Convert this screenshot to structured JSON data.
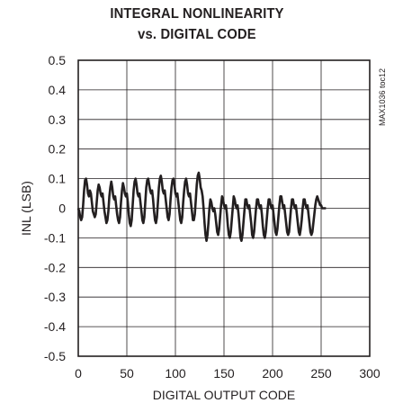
{
  "chart_data": {
    "type": "line",
    "title_line1": "INTEGRAL NONLINEARITY",
    "title_line2": "vs. DIGITAL CODE",
    "xlabel": "DIGITAL OUTPUT CODE",
    "ylabel": "INL (LSB)",
    "xlim": [
      0,
      300
    ],
    "ylim": [
      -0.5,
      0.5
    ],
    "xticks": [
      0,
      50,
      100,
      150,
      200,
      250,
      300
    ],
    "yticks": [
      0.5,
      0.4,
      0.3,
      0.2,
      0.1,
      0,
      -0.1,
      -0.2,
      -0.3,
      -0.4,
      -0.5
    ],
    "ytick_labels": [
      "0.5",
      "0.4",
      "0.3",
      "0.2",
      "0.1",
      "0",
      "-0.1",
      "-0.2",
      "-0.3",
      "-0.4",
      "-0.5"
    ],
    "grid": true,
    "side_note": "MAX1036 toc12",
    "series": [
      {
        "color": "#231f20",
        "x": [
          0,
          1,
          2,
          3,
          4,
          5,
          6,
          7,
          8,
          9,
          10,
          11,
          12,
          13,
          14,
          15,
          16,
          17,
          18,
          19,
          20,
          21,
          22,
          23,
          24,
          25,
          26,
          27,
          28,
          29,
          30,
          31,
          32,
          33,
          34,
          35,
          36,
          37,
          38,
          39,
          40,
          41,
          42,
          43,
          44,
          45,
          46,
          47,
          48,
          49,
          50,
          51,
          52,
          53,
          54,
          55,
          56,
          57,
          58,
          59,
          60,
          61,
          62,
          63,
          64,
          65,
          66,
          67,
          68,
          69,
          70,
          71,
          72,
          73,
          74,
          75,
          76,
          77,
          78,
          79,
          80,
          81,
          82,
          83,
          84,
          85,
          86,
          87,
          88,
          89,
          90,
          91,
          92,
          93,
          94,
          95,
          96,
          97,
          98,
          99,
          100,
          101,
          102,
          103,
          104,
          105,
          106,
          107,
          108,
          109,
          110,
          111,
          112,
          113,
          114,
          115,
          116,
          117,
          118,
          119,
          120,
          121,
          122,
          123,
          124,
          125,
          126,
          127,
          128,
          129,
          130,
          131,
          132,
          133,
          134,
          135,
          136,
          137,
          138,
          139,
          140,
          141,
          142,
          143,
          144,
          145,
          146,
          147,
          148,
          149,
          150,
          151,
          152,
          153,
          154,
          155,
          156,
          157,
          158,
          159,
          160,
          161,
          162,
          163,
          164,
          165,
          166,
          167,
          168,
          169,
          170,
          171,
          172,
          173,
          174,
          175,
          176,
          177,
          178,
          179,
          180,
          181,
          182,
          183,
          184,
          185,
          186,
          187,
          188,
          189,
          190,
          191,
          192,
          193,
          194,
          195,
          196,
          197,
          198,
          199,
          200,
          201,
          202,
          203,
          204,
          205,
          206,
          207,
          208,
          209,
          210,
          211,
          212,
          213,
          214,
          215,
          216,
          217,
          218,
          219,
          220,
          221,
          222,
          223,
          224,
          225,
          226,
          227,
          228,
          229,
          230,
          231,
          232,
          233,
          234,
          235,
          236,
          237,
          238,
          239,
          240,
          241,
          242,
          243,
          244,
          245,
          246,
          247,
          248,
          249,
          250,
          251,
          252,
          253,
          254,
          255
        ],
        "y": [
          0,
          -0.01,
          -0.03,
          -0.04,
          -0.03,
          0.01,
          0.06,
          0.095,
          0.1,
          0.08,
          0.05,
          0.04,
          0.06,
          0.05,
          0.02,
          -0.01,
          -0.02,
          -0.03,
          -0.02,
          0.02,
          0.06,
          0.08,
          0.07,
          0.05,
          0.04,
          0.05,
          0.02,
          -0.01,
          -0.03,
          -0.05,
          -0.04,
          -0.01,
          0.04,
          0.07,
          0.09,
          0.07,
          0.04,
          0.03,
          0.04,
          0.01,
          -0.02,
          -0.04,
          -0.05,
          -0.03,
          0.02,
          0.06,
          0.085,
          0.07,
          0.05,
          0.04,
          0.05,
          0.02,
          -0.02,
          -0.05,
          -0.06,
          -0.04,
          0.01,
          0.06,
          0.09,
          0.1,
          0.08,
          0.05,
          0.04,
          0.05,
          0.02,
          -0.01,
          -0.04,
          -0.05,
          -0.03,
          0.02,
          0.07,
          0.095,
          0.1,
          0.08,
          0.06,
          0.05,
          0.06,
          0.03,
          -0.01,
          -0.04,
          -0.05,
          -0.03,
          0.02,
          0.07,
          0.1,
          0.11,
          0.09,
          0.06,
          0.05,
          0.06,
          0.03,
          0,
          -0.03,
          -0.04,
          -0.02,
          0.03,
          0.07,
          0.095,
          0.1,
          0.08,
          0.05,
          0.04,
          0.05,
          0.02,
          -0.01,
          -0.04,
          -0.05,
          -0.03,
          0.02,
          0.06,
          0.09,
          0.1,
          0.08,
          0.05,
          0.04,
          0.05,
          0.02,
          -0.01,
          -0.04,
          -0.04,
          -0.02,
          0.03,
          0.08,
          0.11,
          0.12,
          0.1,
          0.07,
          0.06,
          0.04,
          0,
          -0.05,
          -0.09,
          -0.11,
          -0.09,
          -0.05,
          0,
          0.03,
          0.02,
          0,
          -0.01,
          0,
          -0.02,
          -0.05,
          -0.08,
          -0.09,
          -0.07,
          -0.03,
          0.01,
          0.04,
          0.03,
          0.01,
          0,
          0.01,
          -0.02,
          -0.06,
          -0.09,
          -0.1,
          -0.08,
          -0.04,
          0,
          0.04,
          0.03,
          0.01,
          0,
          0.01,
          -0.02,
          -0.06,
          -0.1,
          -0.11,
          -0.09,
          -0.05,
          -0.01,
          0.03,
          0.03,
          0.01,
          0,
          0.01,
          -0.02,
          -0.05,
          -0.09,
          -0.1,
          -0.08,
          -0.04,
          0,
          0.03,
          0.03,
          0.01,
          0,
          0.01,
          -0.02,
          -0.06,
          -0.09,
          -0.1,
          -0.08,
          -0.04,
          0,
          0.03,
          0.03,
          0.01,
          0,
          0.01,
          -0.02,
          -0.05,
          -0.08,
          -0.09,
          -0.07,
          -0.03,
          0.01,
          0.04,
          0.04,
          0.02,
          0,
          0.01,
          -0.02,
          -0.05,
          -0.08,
          -0.09,
          -0.08,
          -0.04,
          0,
          0.03,
          0.03,
          0.01,
          0,
          0.01,
          -0.02,
          -0.05,
          -0.08,
          -0.09,
          -0.07,
          -0.04,
          0,
          0.03,
          0.03,
          0.01,
          0,
          0.01,
          -0.02,
          -0.05,
          -0.08,
          -0.09,
          -0.08,
          -0.05,
          -0.02,
          0.01,
          0.03,
          0.04,
          0.03,
          0.02,
          0.01,
          0.01,
          0,
          0,
          0,
          0,
          0
        ]
      }
    ]
  }
}
